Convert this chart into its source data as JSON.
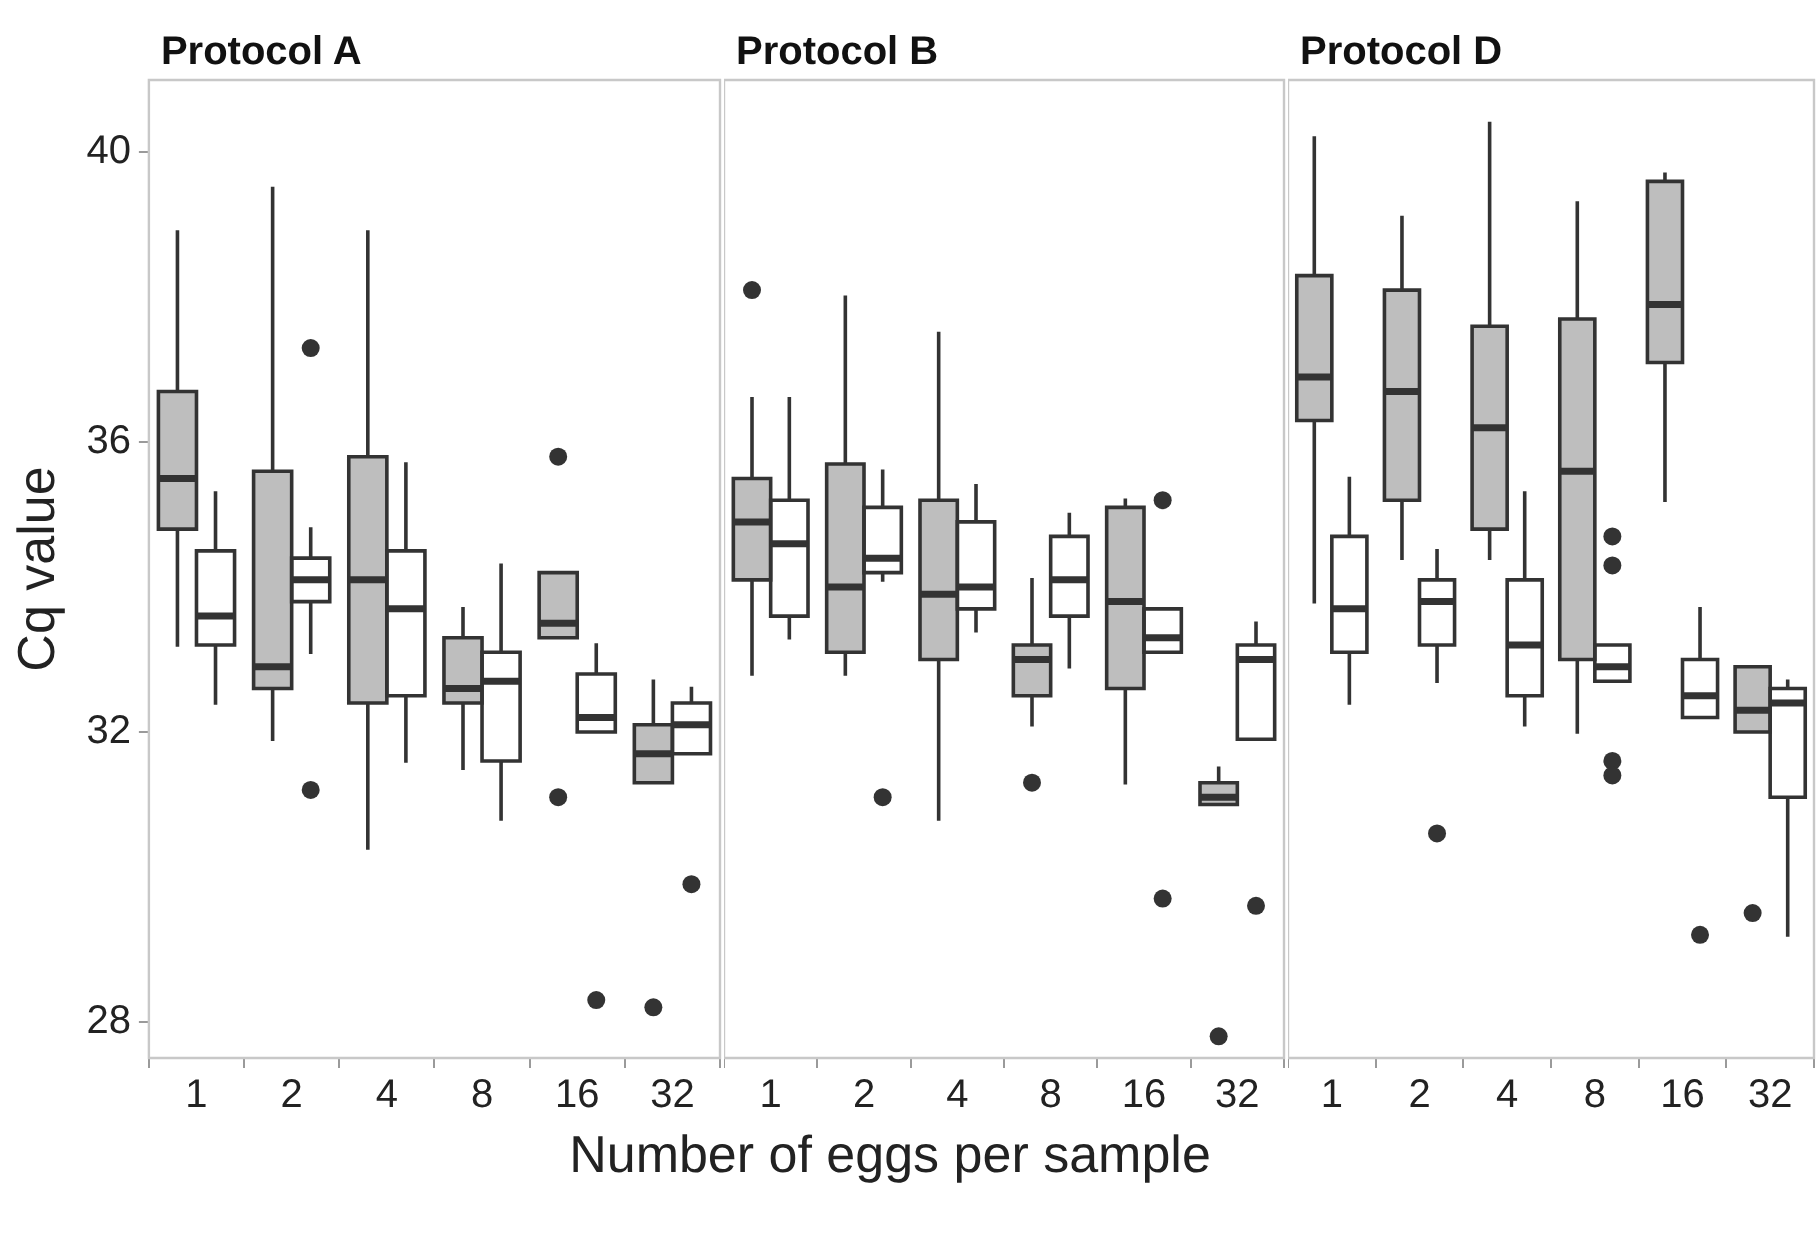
{
  "chart_data": [
    {
      "type": "box",
      "title": "Protocol A",
      "ylabel": "Cq value",
      "categories": [
        "1",
        "2",
        "4",
        "8",
        "16",
        "32"
      ],
      "ylim": [
        27.5,
        41
      ],
      "yticks": [
        28,
        32,
        36,
        40
      ],
      "series": [
        {
          "color": "#bebebe",
          "boxes": [
            {
              "low": 33.2,
              "q1": 34.8,
              "median": 35.5,
              "q3": 36.7,
              "high": 38.9
            },
            {
              "low": 31.9,
              "q1": 32.6,
              "median": 32.9,
              "q3": 35.6,
              "high": 39.5
            },
            {
              "low": 30.4,
              "q1": 32.4,
              "median": 34.1,
              "q3": 35.8,
              "high": 38.9
            },
            {
              "low": 31.5,
              "q1": 32.4,
              "median": 32.6,
              "q3": 33.3,
              "high": 33.7
            },
            {
              "low": 33.3,
              "q1": 33.3,
              "median": 33.5,
              "q3": 34.2,
              "high": 34.2,
              "outliers": [
                35.8,
                31.1
              ]
            },
            {
              "low": 31.3,
              "q1": 31.3,
              "median": 31.7,
              "q3": 32.1,
              "high": 32.7,
              "outliers": [
                28.2
              ]
            }
          ]
        },
        {
          "color": "#ffffff",
          "boxes": [
            {
              "low": 32.4,
              "q1": 33.2,
              "median": 33.6,
              "q3": 34.5,
              "high": 35.3
            },
            {
              "low": 33.1,
              "q1": 33.8,
              "median": 34.1,
              "q3": 34.4,
              "high": 34.8,
              "outliers": [
                37.3,
                31.2
              ]
            },
            {
              "low": 31.6,
              "q1": 32.5,
              "median": 33.7,
              "q3": 34.5,
              "high": 35.7
            },
            {
              "low": 30.8,
              "q1": 31.6,
              "median": 32.7,
              "q3": 33.1,
              "high": 34.3
            },
            {
              "low": 32.0,
              "q1": 32.0,
              "median": 32.2,
              "q3": 32.8,
              "high": 33.2,
              "outliers": [
                28.3
              ]
            },
            {
              "low": 31.7,
              "q1": 31.7,
              "median": 32.1,
              "q3": 32.4,
              "high": 32.6,
              "outliers": [
                29.9
              ]
            }
          ]
        }
      ]
    },
    {
      "type": "box",
      "title": "Protocol B",
      "xlabel": "Number of eggs per sample",
      "tick_labels": "x",
      "categories": [
        "1",
        "2",
        "4",
        "8",
        "16",
        "32"
      ],
      "ylim": [
        27.5,
        41
      ],
      "yticks": [
        28,
        32,
        36,
        40
      ],
      "series": [
        {
          "color": "#bebebe",
          "boxes": [
            {
              "low": 32.8,
              "q1": 34.1,
              "median": 34.9,
              "q3": 35.5,
              "high": 36.6,
              "outliers": [
                38.1
              ]
            },
            {
              "low": 32.8,
              "q1": 33.1,
              "median": 34.0,
              "q3": 35.7,
              "high": 38.0
            },
            {
              "low": 30.8,
              "q1": 33.0,
              "median": 33.9,
              "q3": 35.2,
              "high": 37.5
            },
            {
              "low": 32.1,
              "q1": 32.5,
              "median": 33.0,
              "q3": 33.2,
              "high": 34.1,
              "outliers": [
                31.3
              ]
            },
            {
              "low": 31.3,
              "q1": 32.6,
              "median": 33.8,
              "q3": 35.1,
              "high": 35.2
            },
            {
              "low": 31.0,
              "q1": 31.0,
              "median": 31.1,
              "q3": 31.3,
              "high": 31.5,
              "outliers": [
                27.8
              ]
            }
          ]
        },
        {
          "color": "#ffffff",
          "boxes": [
            {
              "low": 33.3,
              "q1": 33.6,
              "median": 34.6,
              "q3": 35.2,
              "high": 36.6
            },
            {
              "low": 34.1,
              "q1": 34.2,
              "median": 34.4,
              "q3": 35.1,
              "high": 35.6,
              "outliers": [
                31.1
              ]
            },
            {
              "low": 33.4,
              "q1": 33.7,
              "median": 34.0,
              "q3": 34.9,
              "high": 35.4
            },
            {
              "low": 32.9,
              "q1": 33.6,
              "median": 34.1,
              "q3": 34.7,
              "high": 35.0
            },
            {
              "low": 33.1,
              "q1": 33.1,
              "median": 33.3,
              "q3": 33.7,
              "high": 33.7,
              "outliers": [
                35.2,
                29.7
              ]
            },
            {
              "low": 31.9,
              "q1": 31.9,
              "median": 33.0,
              "q3": 33.2,
              "high": 33.5,
              "outliers": [
                29.6
              ]
            }
          ]
        }
      ]
    },
    {
      "type": "box",
      "title": "Protocol D",
      "tick_labels": "x",
      "categories": [
        "1",
        "2",
        "4",
        "8",
        "16",
        "32"
      ],
      "ylim": [
        27.5,
        41
      ],
      "yticks": [
        28,
        32,
        36,
        40
      ],
      "series": [
        {
          "color": "#bebebe",
          "boxes": [
            {
              "low": 33.8,
              "q1": 36.3,
              "median": 36.9,
              "q3": 38.3,
              "high": 40.2
            },
            {
              "low": 34.4,
              "q1": 35.2,
              "median": 36.7,
              "q3": 38.1,
              "high": 39.1
            },
            {
              "low": 34.4,
              "q1": 34.8,
              "median": 36.2,
              "q3": 37.6,
              "high": 40.4
            },
            {
              "low": 32.0,
              "q1": 33.0,
              "median": 35.6,
              "q3": 37.7,
              "high": 39.3
            },
            {
              "low": 35.2,
              "q1": 37.1,
              "median": 37.9,
              "q3": 39.6,
              "high": 39.7
            },
            {
              "low": 32.0,
              "q1": 32.0,
              "median": 32.3,
              "q3": 32.9,
              "high": 32.9,
              "outliers": [
                29.5
              ]
            }
          ]
        },
        {
          "color": "#ffffff",
          "boxes": [
            {
              "low": 32.4,
              "q1": 33.1,
              "median": 33.7,
              "q3": 34.7,
              "high": 35.5
            },
            {
              "low": 32.7,
              "q1": 33.2,
              "median": 33.8,
              "q3": 34.1,
              "high": 34.5,
              "outliers": [
                30.6
              ]
            },
            {
              "low": 32.1,
              "q1": 32.5,
              "median": 33.2,
              "q3": 34.1,
              "high": 35.3
            },
            {
              "low": 32.7,
              "q1": 32.7,
              "median": 32.9,
              "q3": 33.2,
              "high": 33.2,
              "outliers": [
                34.7,
                34.3,
                31.6,
                31.4
              ]
            },
            {
              "low": 32.2,
              "q1": 32.2,
              "median": 32.5,
              "q3": 33.0,
              "high": 33.7,
              "outliers": [
                29.2
              ]
            },
            {
              "low": 29.2,
              "q1": 31.1,
              "median": 32.4,
              "q3": 32.6,
              "high": 32.7
            }
          ]
        }
      ]
    }
  ]
}
